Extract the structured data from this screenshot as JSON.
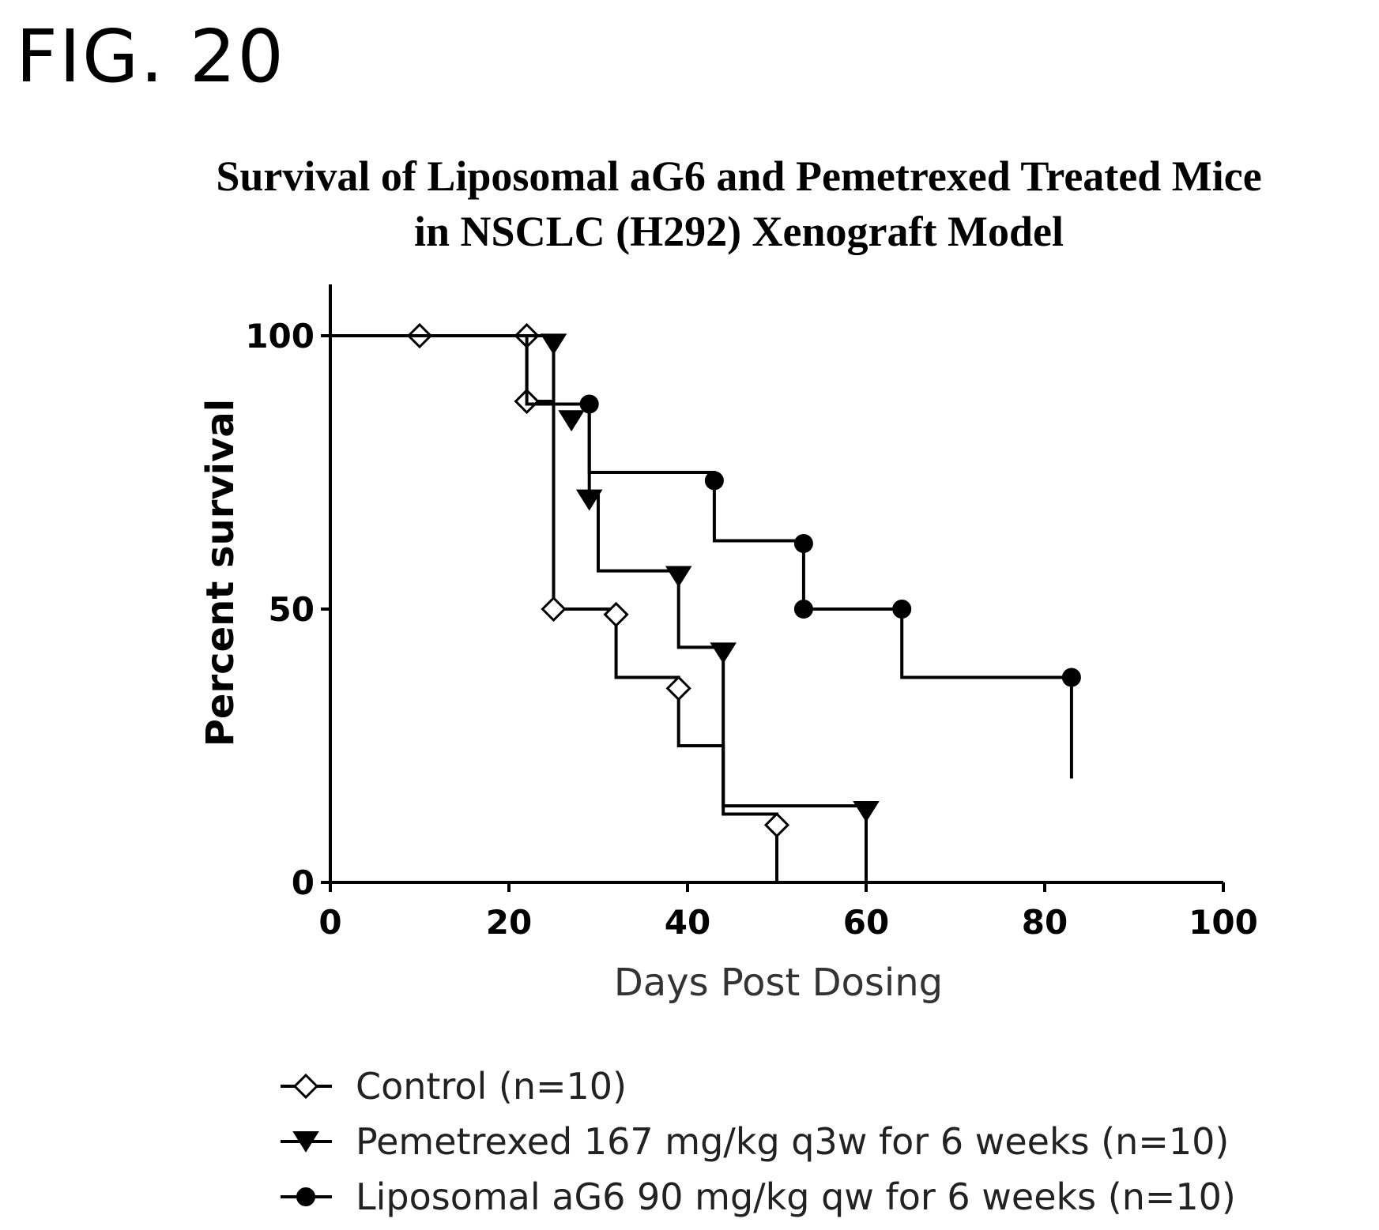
{
  "figure_label": "FIG. 20",
  "chart_data": {
    "type": "line",
    "subtype": "kaplan-meier-survival",
    "title_line1": "Survival of Liposomal aG6 and Pemetrexed Treated Mice",
    "title_line2": "in NSCLC (H292) Xenograft  Model",
    "xlabel": "Days Post Dosing",
    "ylabel": "Percent survival",
    "xlim": [
      0,
      100
    ],
    "ylim": [
      0,
      100
    ],
    "xticks": [
      0,
      20,
      40,
      60,
      80,
      100
    ],
    "yticks": [
      0,
      50,
      100
    ],
    "grid": false,
    "legend_position": "bottom",
    "series": [
      {
        "name": "Control (n=10)",
        "marker": "open-diamond",
        "color": "#000000",
        "steps": [
          [
            0,
            100
          ],
          [
            22,
            100
          ],
          [
            22,
            88
          ],
          [
            25,
            88
          ],
          [
            25,
            50
          ],
          [
            32,
            50
          ],
          [
            32,
            37.5
          ],
          [
            39,
            37.5
          ],
          [
            39,
            25
          ],
          [
            44,
            25
          ],
          [
            44,
            12.5
          ],
          [
            50,
            12.5
          ],
          [
            50,
            0
          ]
        ],
        "points": [
          [
            10,
            100
          ],
          [
            22,
            100
          ],
          [
            22,
            88
          ],
          [
            25,
            50
          ],
          [
            32,
            49
          ],
          [
            39,
            35.5
          ],
          [
            50,
            10.5
          ]
        ]
      },
      {
        "name": "Pemetrexed 167  mg/kg q3w for 6 weeks (n=10)",
        "marker": "filled-triangle-down",
        "color": "#000000",
        "steps": [
          [
            0,
            100
          ],
          [
            25,
            100
          ],
          [
            25,
            87.5
          ],
          [
            29,
            87.5
          ],
          [
            29,
            71.5
          ],
          [
            30,
            71.5
          ],
          [
            30,
            57
          ],
          [
            39,
            57
          ],
          [
            39,
            43
          ],
          [
            44,
            43
          ],
          [
            44,
            14
          ],
          [
            60,
            14
          ],
          [
            60,
            0
          ]
        ],
        "points": [
          [
            25,
            98.5
          ],
          [
            27,
            84.5
          ],
          [
            29,
            70
          ],
          [
            39,
            56
          ],
          [
            44,
            42
          ],
          [
            60,
            13
          ]
        ]
      },
      {
        "name": "Liposomal aG6 90 mg/kg qw for 6 weeks (n=10)",
        "marker": "filled-circle",
        "color": "#000000",
        "steps": [
          [
            0,
            100
          ],
          [
            22,
            100
          ],
          [
            22,
            87.5
          ],
          [
            29,
            87.5
          ],
          [
            29,
            75
          ],
          [
            43,
            75
          ],
          [
            43,
            62.5
          ],
          [
            53,
            62.5
          ],
          [
            53,
            50
          ],
          [
            64,
            50
          ],
          [
            64,
            37.5
          ],
          [
            83,
            37.5
          ],
          [
            83,
            19
          ]
        ],
        "points": [
          [
            29,
            87.5
          ],
          [
            43,
            73.5
          ],
          [
            53,
            62
          ],
          [
            53,
            50
          ],
          [
            64,
            50
          ],
          [
            83,
            37.5
          ]
        ]
      }
    ]
  }
}
